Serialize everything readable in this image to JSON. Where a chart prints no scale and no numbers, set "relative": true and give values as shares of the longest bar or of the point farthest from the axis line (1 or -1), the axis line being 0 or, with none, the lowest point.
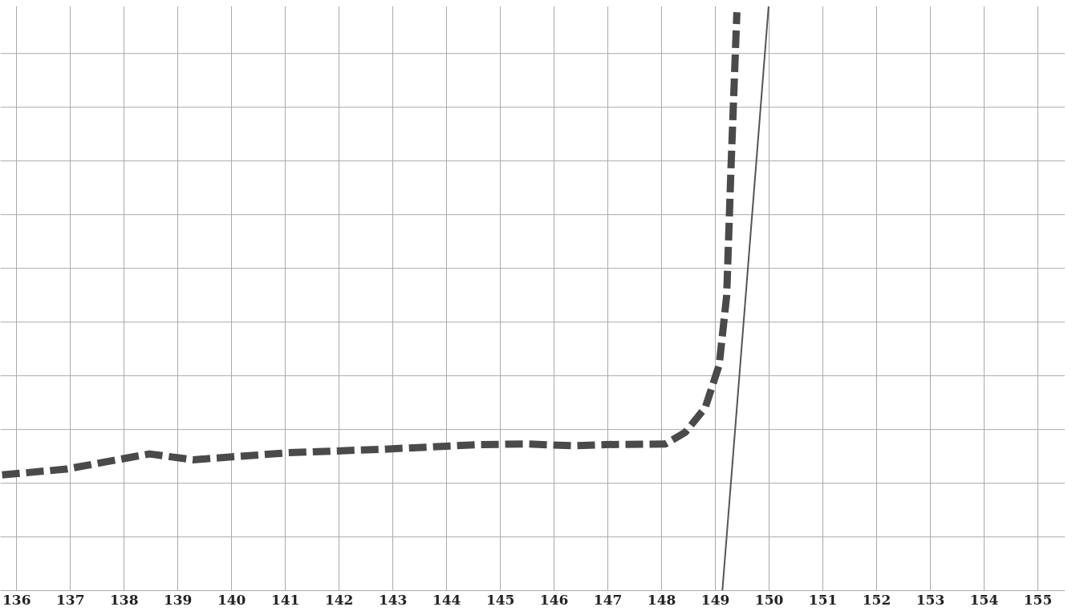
{
  "chart_data": {
    "type": "line",
    "relative": true,
    "xlim": [
      135.7,
      155.5
    ],
    "xticks": [
      136,
      137,
      138,
      139,
      140,
      141,
      142,
      143,
      144,
      145,
      146,
      147,
      148,
      149,
      150,
      151,
      152,
      153,
      154,
      155
    ],
    "grid": true,
    "tick_labels": "x",
    "marker": "none",
    "series": [
      {
        "color": "#4a4a4a",
        "line_style": "dashed",
        "x": [
          135.73,
          136.92,
          138.47,
          139.28,
          141.05,
          142.82,
          144.6,
          145.48,
          146.37,
          146.96,
          148.07,
          148.44,
          148.81,
          149.07,
          149.21,
          149.29,
          149.4
        ],
        "values": [
          0.198,
          0.208,
          0.234,
          0.224,
          0.236,
          0.242,
          0.25,
          0.251,
          0.248,
          0.25,
          0.251,
          0.271,
          0.313,
          0.386,
          0.505,
          0.723,
          0.99
        ]
      },
      {
        "color": "#555555",
        "line_style": "solid",
        "x": [
          149.13,
          149.99
        ],
        "values": [
          0,
          1
        ]
      }
    ]
  }
}
